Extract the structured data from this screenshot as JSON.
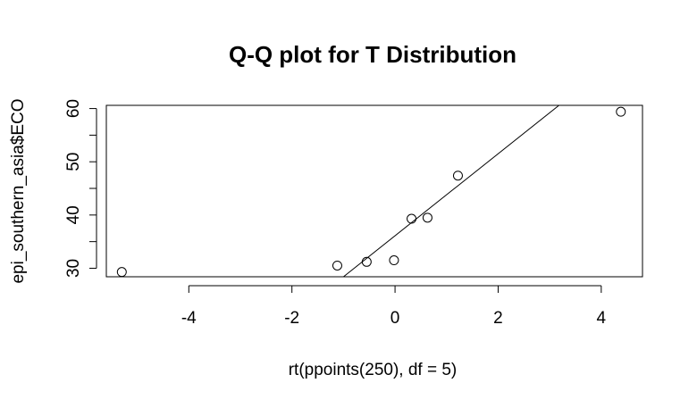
{
  "chart_data": {
    "type": "scatter",
    "title": "Q-Q plot for T Distribution",
    "xlabel": "rt(ppoints(250), df = 5)",
    "ylabel": "epi_southern_asia$ECO",
    "xlim": [
      -5.6,
      4.8
    ],
    "ylim": [
      28.4,
      60.6
    ],
    "x_ticks": [
      -4,
      -2,
      0,
      2,
      4
    ],
    "x_tick_labels": [
      "-4",
      "-2",
      "0",
      "2",
      "4"
    ],
    "y_ticks": [
      30,
      40,
      50,
      60
    ],
    "y_tick_labels": [
      "30",
      "40",
      "50",
      "60"
    ],
    "points": [
      {
        "x": -5.3,
        "y": 29.3
      },
      {
        "x": -1.12,
        "y": 30.5
      },
      {
        "x": -0.55,
        "y": 31.2
      },
      {
        "x": -0.02,
        "y": 31.5
      },
      {
        "x": 0.32,
        "y": 39.3
      },
      {
        "x": 0.63,
        "y": 39.5
      },
      {
        "x": 1.22,
        "y": 47.4
      },
      {
        "x": 4.38,
        "y": 59.4
      }
    ],
    "reference_line": {
      "x1": -1.0,
      "y1": 28.4,
      "x2": 3.18,
      "y2": 60.6
    },
    "grid": false,
    "legend": "none",
    "colors": {
      "points": "#000000",
      "line": "#000000",
      "frame": "#000000"
    }
  }
}
